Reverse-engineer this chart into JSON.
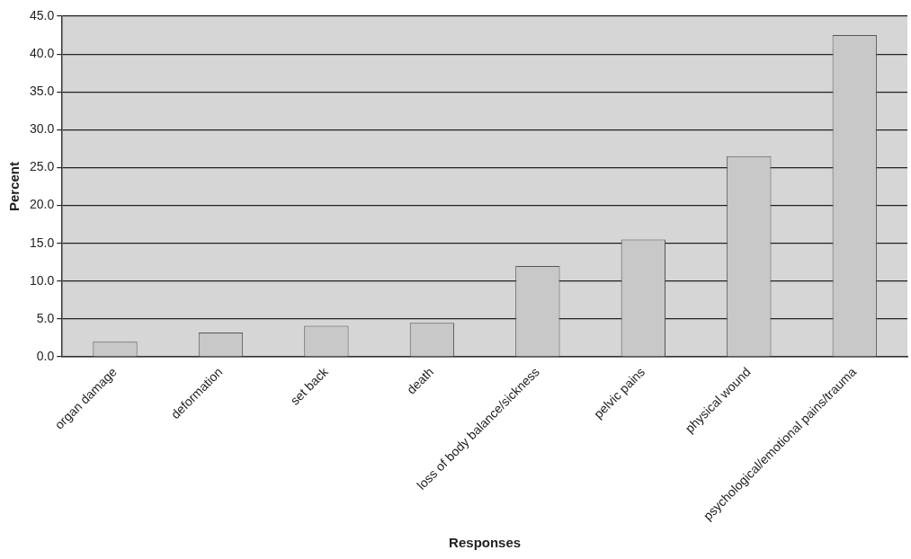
{
  "chart_data": {
    "type": "bar",
    "xlabel": "Responses",
    "ylabel": "Percent",
    "categories": [
      "organ damage",
      "deformation",
      "set back",
      "death",
      "loss of body balance/sickness",
      "pelvic pains",
      "physical wound",
      "psychological/emotional pains/trauma"
    ],
    "values": [
      2.0,
      3.2,
      4.1,
      4.5,
      12.0,
      15.5,
      26.5,
      42.5
    ],
    "color": "#c8c8c8",
    "ylim": [
      0,
      45
    ],
    "yticks": [
      {
        "value": 0,
        "label": "0.0"
      },
      {
        "value": 5,
        "label": "5.0"
      },
      {
        "value": 10,
        "label": "10.0"
      },
      {
        "value": 15,
        "label": "15.0"
      },
      {
        "value": 20,
        "label": "20.0"
      },
      {
        "value": 25,
        "label": "25.0"
      },
      {
        "value": 30,
        "label": "30.0"
      },
      {
        "value": 35,
        "label": "35.0"
      },
      {
        "value": 40,
        "label": "40.0"
      },
      {
        "value": 45,
        "label": "45.0"
      }
    ],
    "grid": "y",
    "legend": false
  }
}
